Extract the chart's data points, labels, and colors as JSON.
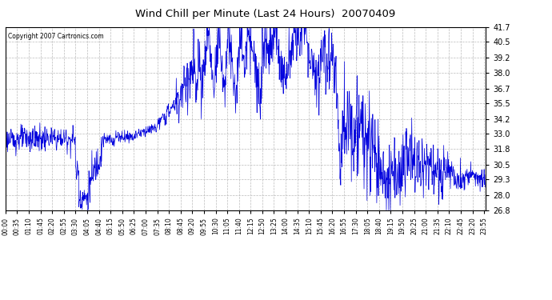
{
  "title": "Wind Chill per Minute (Last 24 Hours)  20070409",
  "copyright_text": "Copyright 2007 Cartronics.com",
  "line_color": "#0000dd",
  "background_color": "#ffffff",
  "grid_color": "#bbbbbb",
  "yticks": [
    26.8,
    28.0,
    29.3,
    30.5,
    31.8,
    33.0,
    34.2,
    35.5,
    36.7,
    38.0,
    39.2,
    40.5,
    41.7
  ],
  "ylim": [
    26.8,
    41.7
  ],
  "xtick_step_minutes": 35,
  "total_minutes": 1440,
  "ylabel": "",
  "xlabel": ""
}
